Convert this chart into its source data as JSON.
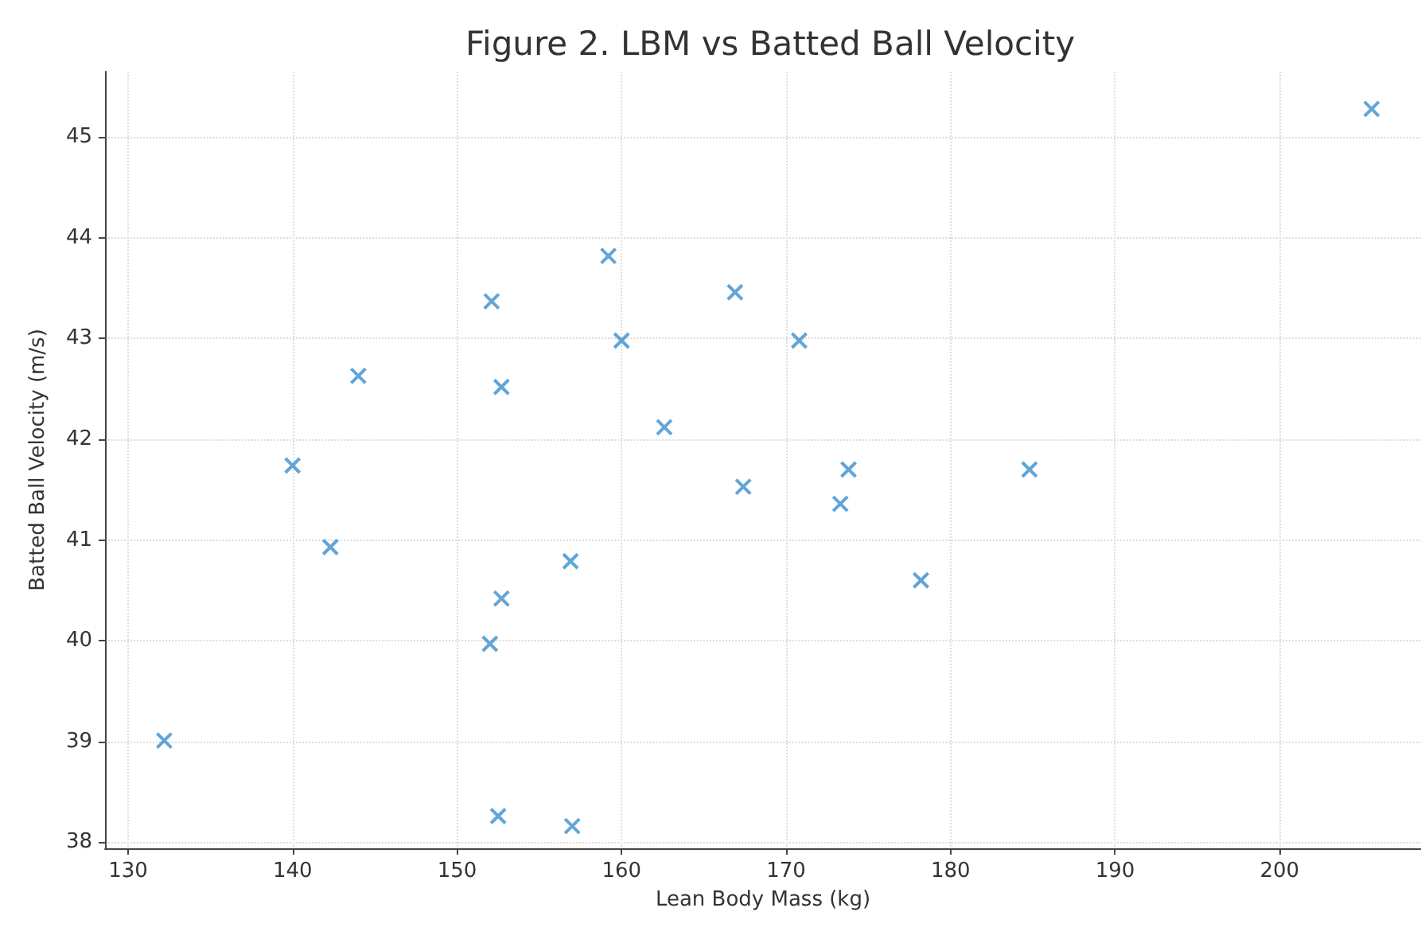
{
  "chart_data": {
    "type": "scatter",
    "title": "Figure 2. LBM vs Batted Ball Velocity",
    "xlabel": "Lean Body Mass (kg)",
    "ylabel": "Batted Ball Velocity (m/s)",
    "x": [
      132.2,
      140.0,
      142.3,
      144.0,
      152.1,
      152.7,
      152.0,
      152.7,
      152.5,
      156.9,
      157.0,
      159.2,
      160.0,
      162.6,
      166.9,
      167.4,
      170.8,
      173.3,
      173.8,
      178.2,
      184.8,
      205.6
    ],
    "series": [
      {
        "color": "#3a8fd0",
        "values": [
          39.01,
          41.74,
          40.93,
          42.63,
          43.37,
          42.52,
          39.97,
          40.42,
          38.26,
          40.79,
          38.16,
          43.82,
          42.98,
          42.12,
          43.46,
          41.53,
          42.98,
          41.36,
          41.7,
          40.6,
          41.7,
          45.28
        ]
      }
    ],
    "xlim": [
      128.6,
      208.6
    ],
    "xticks": [
      130,
      140,
      150,
      160,
      170,
      180,
      190,
      200
    ],
    "ylim": [
      37.94,
      45.65
    ],
    "yticks": [
      38,
      39,
      40,
      41,
      42,
      43,
      44,
      45
    ],
    "grid": true,
    "marker": "cross"
  }
}
